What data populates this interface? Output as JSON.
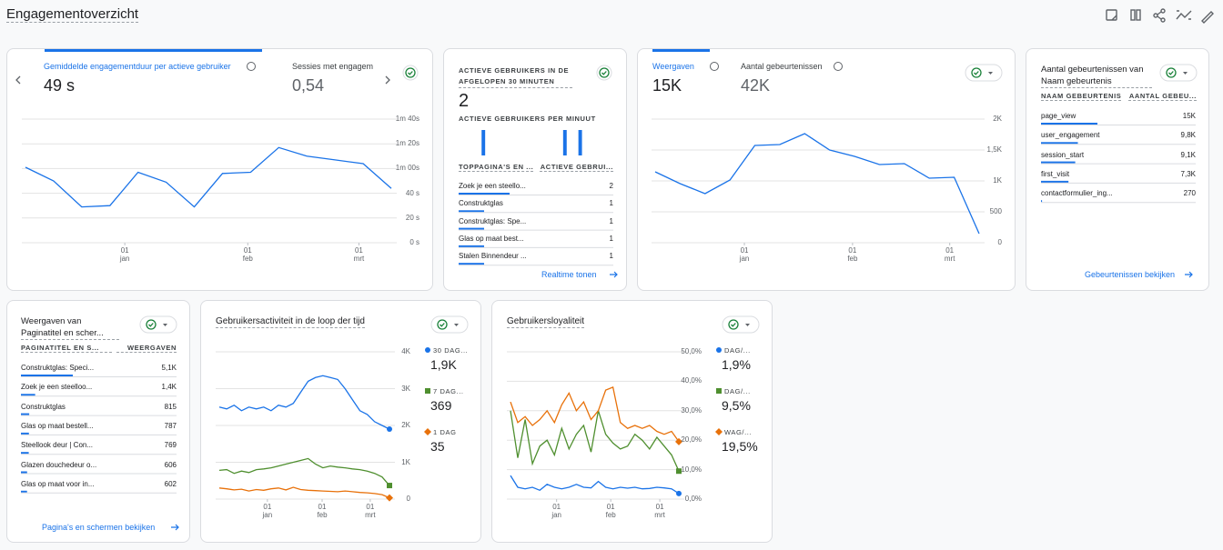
{
  "header": {
    "title": "Engagementoverzicht"
  },
  "cards": [
    {
      "metrics": [
        {
          "label": "Gemiddelde engagementduur per actieve gebruiker",
          "value": "49 s"
        },
        {
          "label": "Sessies met engagem",
          "value": "0,54"
        }
      ],
      "chart": {
        "type": "line",
        "color": "#1a73e8",
        "grid": true,
        "xlim": [
          0,
          13
        ],
        "ylim": [
          0,
          100
        ],
        "values": [
          61,
          50,
          29,
          30,
          57,
          49,
          29,
          56,
          57,
          77,
          70,
          67,
          64,
          44
        ],
        "yticks": [
          {
            "value": 100,
            "label": "1m 40s"
          },
          {
            "value": 80,
            "label": "1m 20s"
          },
          {
            "value": 60,
            "label": "1m 00s"
          },
          {
            "value": 40,
            "label": "40 s"
          },
          {
            "value": 20,
            "label": "20 s"
          },
          {
            "value": 0,
            "label": "0 s"
          }
        ],
        "xticks": [
          {
            "value": 3.53,
            "label": "01 jan"
          },
          {
            "value": 7.9,
            "label": "01 feb"
          },
          {
            "value": 11.85,
            "label": "01 mrt"
          }
        ]
      }
    },
    {
      "title": "ACTIEVE GEBRUIKERS IN DE AFGELOPEN 30 MINUTEN",
      "value": 2,
      "subtitle": "ACTIEVE GEBRUIKERS PER MINUUT",
      "chart": {
        "type": "bar",
        "color": "#1a73e8",
        "ylim": [
          0,
          1
        ],
        "values": [
          0,
          0,
          0,
          0,
          1,
          0,
          0,
          0,
          0,
          0,
          0,
          0,
          0,
          0,
          0,
          0,
          0,
          0,
          0,
          0,
          1,
          0,
          0,
          1,
          0,
          0,
          0,
          0,
          0,
          0
        ]
      },
      "columns": [
        "TOPPAGINA'S EN ...",
        "ACTIEVE GEBRUI..."
      ],
      "rows": [
        {
          "label": "Zoek je een steello...",
          "value": 2
        },
        {
          "label": "Construktglas",
          "value": 1
        },
        {
          "label": "Construktglas: Spe...",
          "value": 1
        },
        {
          "label": "Glas op maat best...",
          "value": 1
        },
        {
          "label": "Stalen Binnendeur ...",
          "value": 1
        }
      ],
      "link": "Realtime tonen"
    },
    {
      "metrics": [
        {
          "label": "Weergaven",
          "value": "15K"
        },
        {
          "label": "Aantal gebeurtenissen",
          "value": "42K"
        }
      ],
      "chart": {
        "type": "line",
        "color": "#1a73e8",
        "grid": true,
        "xlim": [
          0,
          13
        ],
        "ylim": [
          0,
          2000
        ],
        "values": [
          1147,
          956,
          794,
          1015,
          1574,
          1588,
          1765,
          1500,
          1397,
          1265,
          1279,
          1044,
          1059,
          147
        ],
        "yticks": [
          {
            "value": 2000,
            "label": "2K"
          },
          {
            "value": 1500,
            "label": "1,5K"
          },
          {
            "value": 1000,
            "label": "1K"
          },
          500,
          0
        ],
        "xticks": [
          {
            "value": 3.58,
            "label": "01 jan"
          },
          {
            "value": 7.92,
            "label": "01 feb"
          },
          {
            "value": 11.82,
            "label": "01 mrt"
          }
        ]
      }
    },
    {
      "title": "Aantal gebeurtenissen van Naam gebeurtenis",
      "columns": [
        "NAAM GEBEURTENIS",
        "AANTAL GEBEU..."
      ],
      "rows": [
        {
          "label": "page_view",
          "value": 15000,
          "value_label": "15K"
        },
        {
          "label": "user_engagement",
          "value": 9800,
          "value_label": "9,8K"
        },
        {
          "label": "session_start",
          "value": 9100,
          "value_label": "9,1K"
        },
        {
          "label": "first_visit",
          "value": 7300,
          "value_label": "7,3K"
        },
        {
          "label": "contactformulier_ing...",
          "value": 270
        }
      ],
      "link": "Gebeurtenissen bekijken"
    },
    {
      "title": "Weergaven van Paginatitel en scher...",
      "columns": [
        "PAGINATITEL EN S...",
        "WEERGAVEN"
      ],
      "rows": [
        {
          "label": "Construktglas: Speci...",
          "value": 5100,
          "value_label": "5,1K"
        },
        {
          "label": "Zoek je een steelloo...",
          "value": 1400,
          "value_label": "1,4K"
        },
        {
          "label": "Construktglas",
          "value": 815
        },
        {
          "label": "Glas op maat bestell...",
          "value": 787
        },
        {
          "label": "Steellook deur | Con...",
          "value": 769
        },
        {
          "label": "Glazen douchedeur o...",
          "value": 606
        },
        {
          "label": "Glas op maat voor in...",
          "value": 602
        }
      ],
      "link": "Pagina's en schermen bekijken"
    },
    {
      "title": "Gebruikersactiviteit in de loop der tijd",
      "chart": {
        "type": "line",
        "grid": true,
        "xlim": [
          0,
          23
        ],
        "ylim": [
          0,
          4000
        ],
        "yticks": [
          {
            "value": 4000,
            "label": "4K"
          },
          {
            "value": 3000,
            "label": "3K"
          },
          {
            "value": 2000,
            "label": "2K"
          },
          {
            "value": 1000,
            "label": "1K"
          },
          0
        ],
        "xticks": [
          {
            "value": 6.5,
            "label": "01 jan"
          },
          {
            "value": 13.9,
            "label": "01 feb"
          },
          {
            "value": 20.4,
            "label": "01 mrt"
          }
        ],
        "series": [
          {
            "name": "30 DAG...",
            "summary": "1,9K",
            "color": "#1a73e8",
            "marker": "circle",
            "values": [
              2500,
              2450,
              2550,
              2400,
              2500,
              2450,
              2500,
              2400,
              2550,
              2500,
              2600,
              2900,
              3200,
              3300,
              3350,
              3300,
              3250,
              3000,
              2700,
              2400,
              2300,
              2100,
              2000,
              1900
            ]
          },
          {
            "name": "7 DAG...",
            "summary": "369",
            "color": "#4f8f2f",
            "marker": "square",
            "values": [
              780,
              800,
              700,
              760,
              720,
              800,
              820,
              850,
              900,
              950,
              1000,
              1050,
              1100,
              950,
              850,
              900,
              870,
              850,
              820,
              800,
              760,
              700,
              600,
              369
            ]
          },
          {
            "name": "1 DAG",
            "summary": "35",
            "color": "#e8710a",
            "marker": "diamond",
            "values": [
              300,
              280,
              250,
              270,
              220,
              260,
              240,
              280,
              300,
              250,
              320,
              260,
              240,
              230,
              220,
              210,
              200,
              220,
              200,
              180,
              170,
              150,
              120,
              35
            ]
          }
        ]
      }
    },
    {
      "title": "Gebruikersloyaliteit",
      "chart": {
        "type": "line",
        "grid": true,
        "xlim": [
          0,
          23
        ],
        "ylim": [
          0,
          50
        ],
        "yticks": [
          {
            "value": 50,
            "label": "50,0%"
          },
          {
            "value": 40,
            "label": "40,0%"
          },
          {
            "value": 30,
            "label": "30,0%"
          },
          {
            "value": 20,
            "label": "20,0%"
          },
          {
            "value": 10,
            "label": "10,0%"
          },
          {
            "value": 0,
            "label": "0,0%"
          }
        ],
        "xticks": [
          {
            "value": 6.3,
            "label": "01 jan"
          },
          {
            "value": 13.7,
            "label": "01 feb"
          },
          {
            "value": 20.4,
            "label": "01 mrt"
          }
        ],
        "series": [
          {
            "name": "DAG/...",
            "summary": "1,9%",
            "color": "#1a73e8",
            "marker": "circle",
            "values": [
              8,
              4,
              3.5,
              4,
              3,
              5,
              4,
              3.5,
              4,
              5,
              4,
              3.8,
              6,
              4,
              3.5,
              4,
              3.7,
              4,
              3.5,
              3.6,
              4,
              3.8,
              3.5,
              1.9
            ]
          },
          {
            "name": "DAG/...",
            "summary": "9,5%",
            "color": "#4f8f2f",
            "marker": "square",
            "values": [
              30,
              14,
              27,
              12,
              18,
              20,
              15,
              24,
              17,
              22,
              25,
              16,
              30,
              22,
              19,
              17,
              18,
              22,
              20,
              17,
              21,
              18,
              15,
              9.5
            ]
          },
          {
            "name": "WAG/...",
            "summary": "19,5%",
            "color": "#e8710a",
            "marker": "diamond",
            "values": [
              33,
              26,
              28,
              25,
              27,
              30,
              26,
              32,
              36,
              30,
              33,
              27,
              30,
              37,
              38,
              26,
              24,
              25,
              24,
              25,
              23,
              22,
              23,
              19.5
            ]
          }
        ]
      }
    }
  ]
}
